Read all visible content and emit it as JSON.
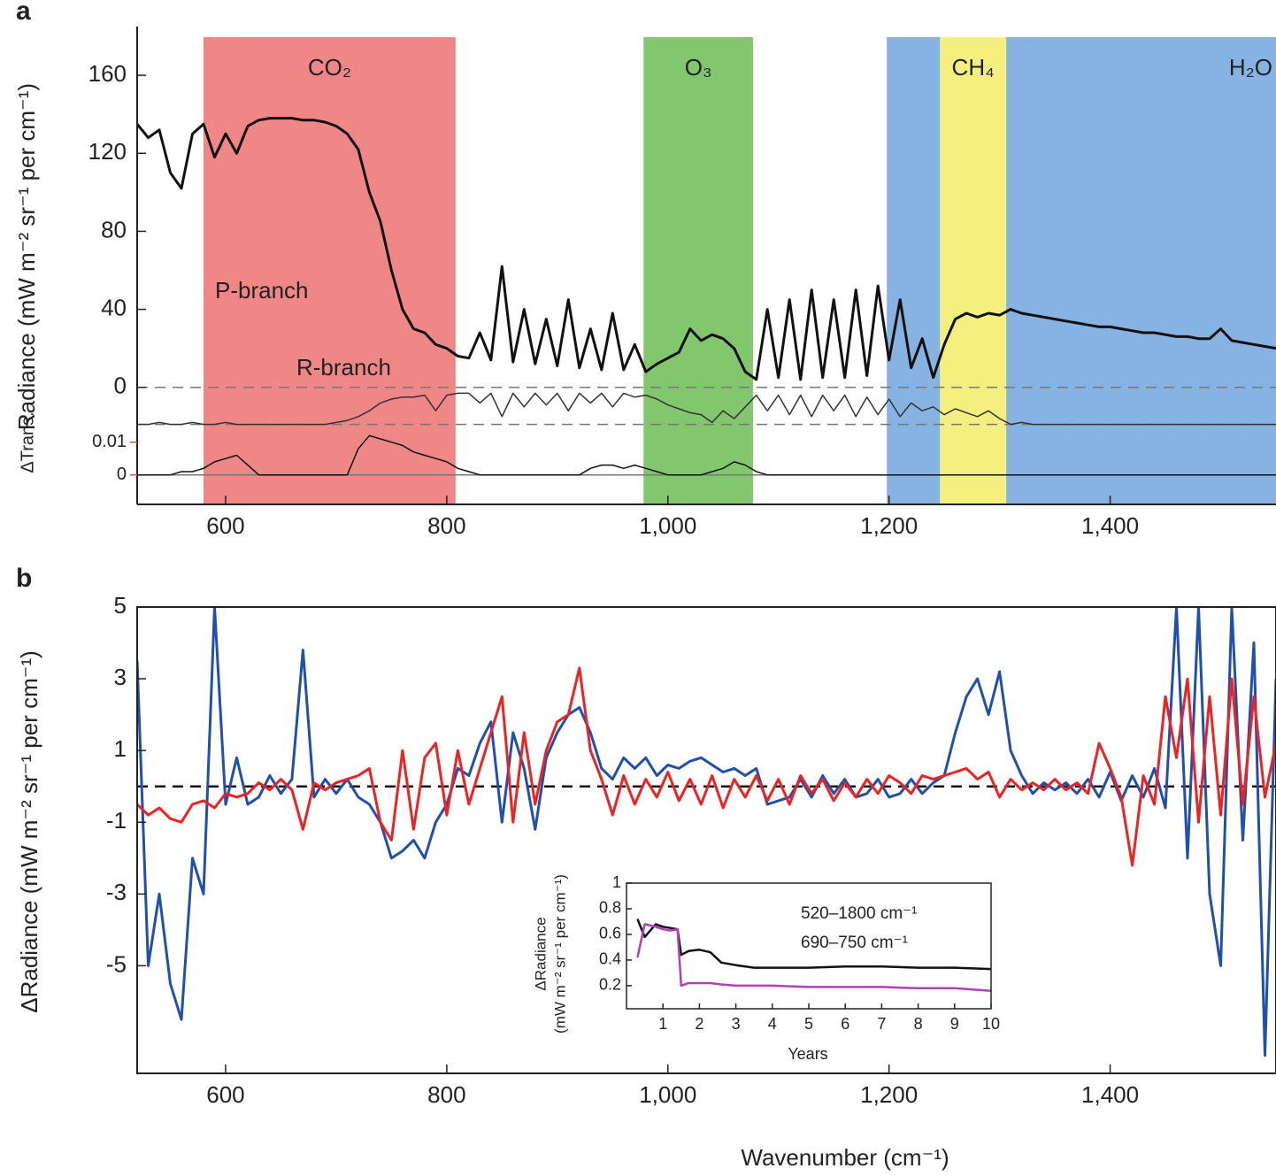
{
  "chart_data": [
    {
      "type": "line",
      "panel": "a",
      "ylabel": "Radiance (mW m⁻² sr⁻¹ per cm⁻¹)",
      "y2label": "ΔTrans.",
      "y2color": "#e0474c",
      "xlim": [
        520,
        1550
      ],
      "xticks": [
        600,
        800,
        {
          "value": 1000,
          "label": "1,000"
        },
        {
          "value": 1200,
          "label": "1,200"
        },
        {
          "value": 1400,
          "label": "1,400"
        }
      ],
      "ylim": [
        -60,
        185
      ],
      "yticks": [
        0,
        40,
        80,
        120,
        160
      ],
      "y2lim": [
        -0.009,
        0.137
      ],
      "y2ticks": [
        0,
        0.01
      ],
      "bands": [
        {
          "label": "CO₂",
          "range": [
            580,
            808
          ],
          "color": "#ef8787"
        },
        {
          "label": "O₃",
          "range": [
            978,
            1077
          ],
          "color": "#82c76d"
        },
        {
          "label": "H₂O",
          "range": [
            1198,
            1550
          ],
          "color": "#86b3e2"
        },
        {
          "label": "CH₄",
          "range": [
            1246,
            1306
          ],
          "color": "#f5ef80"
        }
      ],
      "annotations": [
        "P-branch",
        "R-branch"
      ],
      "hlines": [
        0,
        -19
      ],
      "y2hlines": [
        0
      ],
      "x": [
        520,
        530,
        540,
        550,
        560,
        570,
        580,
        590,
        600,
        610,
        620,
        630,
        640,
        650,
        660,
        670,
        680,
        690,
        700,
        710,
        720,
        730,
        740,
        750,
        760,
        770,
        780,
        790,
        800,
        810,
        820,
        830,
        840,
        850,
        860,
        870,
        880,
        890,
        900,
        910,
        920,
        930,
        940,
        950,
        960,
        970,
        980,
        990,
        1000,
        1010,
        1020,
        1030,
        1040,
        1050,
        1060,
        1070,
        1080,
        1090,
        1100,
        1110,
        1120,
        1130,
        1140,
        1150,
        1160,
        1170,
        1180,
        1190,
        1200,
        1210,
        1220,
        1230,
        1240,
        1250,
        1260,
        1270,
        1280,
        1290,
        1300,
        1310,
        1320,
        1330,
        1340,
        1350,
        1360,
        1370,
        1380,
        1390,
        1400,
        1410,
        1420,
        1430,
        1440,
        1450,
        1460,
        1470,
        1480,
        1490,
        1500,
        1510,
        1520,
        1530,
        1540,
        1550
      ],
      "series": [
        {
          "color": "#111111",
          "values": [
            135,
            128,
            132,
            110,
            102,
            130,
            135,
            118,
            130,
            120,
            134,
            137,
            138,
            138,
            138,
            137,
            137,
            136,
            134,
            130,
            122,
            100,
            85,
            60,
            40,
            30,
            28,
            22,
            20,
            16,
            15,
            28,
            14,
            62,
            13,
            40,
            12,
            35,
            11,
            45,
            10,
            30,
            9,
            38,
            9,
            22,
            8,
            12,
            15,
            18,
            30,
            24,
            27,
            25,
            20,
            8,
            4,
            40,
            5,
            45,
            4,
            50,
            5,
            45,
            5,
            50,
            6,
            52,
            14,
            45,
            10,
            25,
            5,
            22,
            35,
            38,
            36,
            38,
            37,
            40,
            38,
            37,
            36,
            35,
            34,
            33,
            32,
            31,
            31,
            30,
            29,
            28,
            28,
            27,
            26,
            26,
            25,
            25,
            30,
            24,
            23,
            22,
            21,
            20
          ]
        },
        {
          "color": "#333333",
          "values": [
            -19,
            -19,
            -18,
            -19,
            -19,
            -18,
            -19,
            -19,
            -18,
            -19,
            -19,
            -19,
            -19,
            -19,
            -19,
            -19,
            -19,
            -19,
            -18,
            -17,
            -15,
            -12,
            -8,
            -6,
            -5,
            -5,
            -4,
            -12,
            -4,
            -3,
            -3,
            -8,
            -3,
            -15,
            -3,
            -10,
            -3,
            -9,
            -3,
            -12,
            -3,
            -8,
            -3,
            -10,
            -3,
            -5,
            -4,
            -6,
            -9,
            -11,
            -13,
            -14,
            -18,
            -12,
            -16,
            -10,
            -4,
            -12,
            -4,
            -14,
            -4,
            -15,
            -4,
            -12,
            -4,
            -15,
            -5,
            -14,
            -6,
            -15,
            -8,
            -12,
            -10,
            -14,
            -11,
            -13,
            -15,
            -12,
            -16,
            -19,
            -18,
            -19,
            -19,
            -19,
            -19,
            -19,
            -19,
            -19,
            -19,
            -19,
            -19,
            -19,
            -19,
            -19,
            -19,
            -19,
            -19,
            -19,
            -19,
            -19,
            -19,
            -19,
            -19,
            -19
          ]
        },
        {
          "color": "#111111",
          "axis": "y2",
          "values": [
            0,
            0,
            0,
            0,
            0.001,
            0.001,
            0.002,
            0.004,
            0.005,
            0.006,
            0.003,
            0,
            0,
            0,
            0,
            0,
            0,
            0,
            0,
            0,
            0.008,
            0.012,
            0.011,
            0.01,
            0.009,
            0.007,
            0.006,
            0.005,
            0.004,
            0.002,
            0.001,
            0,
            0,
            0,
            0,
            0,
            0,
            0,
            0,
            0,
            0,
            0.002,
            0.003,
            0.003,
            0.002,
            0.003,
            0.002,
            0.001,
            0,
            0,
            0,
            0,
            0.001,
            0.002,
            0.004,
            0.003,
            0.001,
            0,
            0,
            0,
            0,
            0,
            0,
            0,
            0,
            0,
            0,
            0,
            0,
            0,
            0,
            0,
            0,
            0,
            0,
            0,
            0,
            0,
            0,
            0,
            0,
            0,
            0,
            0,
            0,
            0,
            0,
            0,
            0,
            0,
            0,
            0,
            0,
            0,
            0,
            0,
            0,
            0,
            0,
            0,
            0,
            0,
            0,
            0
          ]
        }
      ]
    },
    {
      "type": "line",
      "panel": "b",
      "ylabel": "ΔRadiance (mW m⁻² sr⁻¹ per cm⁻¹)",
      "xlabel": "Wavenumber (cm⁻¹)",
      "xlim": [
        520,
        1550
      ],
      "xticks": [
        600,
        800,
        {
          "value": 1000,
          "label": "1,000"
        },
        {
          "value": 1200,
          "label": "1,200"
        },
        {
          "value": 1400,
          "label": "1,400"
        }
      ],
      "ylim": [
        -8,
        5
      ],
      "yticks": [
        5,
        3,
        1,
        -1,
        -3,
        -5
      ],
      "hlines": [
        0
      ],
      "x": [
        520,
        530,
        540,
        550,
        560,
        570,
        580,
        590,
        600,
        610,
        620,
        630,
        640,
        650,
        660,
        670,
        680,
        690,
        700,
        710,
        720,
        730,
        740,
        750,
        760,
        770,
        780,
        790,
        800,
        810,
        820,
        830,
        840,
        850,
        860,
        870,
        880,
        890,
        900,
        910,
        920,
        930,
        940,
        950,
        960,
        970,
        980,
        990,
        1000,
        1010,
        1020,
        1030,
        1040,
        1050,
        1060,
        1070,
        1080,
        1090,
        1100,
        1110,
        1120,
        1130,
        1140,
        1150,
        1160,
        1170,
        1180,
        1190,
        1200,
        1210,
        1220,
        1230,
        1240,
        1250,
        1260,
        1270,
        1280,
        1290,
        1300,
        1310,
        1320,
        1330,
        1340,
        1350,
        1360,
        1370,
        1380,
        1390,
        1400,
        1410,
        1420,
        1430,
        1440,
        1450,
        1460,
        1470,
        1480,
        1490,
        1500,
        1510,
        1520,
        1530,
        1540,
        1550
      ],
      "series": [
        {
          "color": "#1f4fb0",
          "values": [
            3.5,
            -5,
            -3,
            -5.5,
            -6.5,
            -2,
            -3,
            5,
            -0.5,
            0.8,
            -0.5,
            -0.3,
            0.3,
            -0.2,
            0.2,
            3.8,
            -0.3,
            0.2,
            -0.2,
            0.2,
            -0.3,
            -0.5,
            -1,
            -2,
            -1.8,
            -1.5,
            -2,
            -1,
            -0.5,
            0.5,
            0.3,
            1.2,
            1.8,
            -1,
            1.5,
            0.5,
            -1.2,
            0.8,
            1.5,
            2,
            2.2,
            1.5,
            0.5,
            0.2,
            0.8,
            0.5,
            0.8,
            0.3,
            0.6,
            0.5,
            0.7,
            0.8,
            0.6,
            0.4,
            0.5,
            0.3,
            0.5,
            -0.5,
            -0.4,
            -0.3,
            0.2,
            -0.3,
            0.3,
            -0.2,
            0.2,
            -0.3,
            -0.2,
            0.2,
            -0.3,
            -0.2,
            0.2,
            -0.2,
            0.1,
            0.3,
            1.5,
            2.5,
            3,
            2,
            3.2,
            1,
            0.3,
            -0.2,
            0.1,
            -0.1,
            0.1,
            -0.2,
            0.2,
            -0.3,
            0.4,
            -0.4,
            0.3,
            -0.3,
            0.5,
            -0.6,
            5,
            -2,
            5,
            -3,
            -5,
            5,
            -1.5,
            4,
            -7.5,
            3
          ]
        },
        {
          "color": "#ee2222",
          "values": [
            -0.5,
            -0.8,
            -0.6,
            -0.9,
            -1,
            -0.5,
            -0.4,
            -0.6,
            -0.2,
            -0.3,
            -0.2,
            0.1,
            -0.1,
            0.2,
            -0.1,
            -1.2,
            0.1,
            -0.1,
            0.1,
            0.2,
            0.3,
            0.5,
            -1,
            -1.5,
            1,
            -1.2,
            0.8,
            1.2,
            -0.8,
            1,
            -0.5,
            0.5,
            1.5,
            2.5,
            -1,
            1.5,
            -0.5,
            1,
            1.8,
            2,
            3.3,
            1,
            0.2,
            -0.8,
            0.3,
            -0.5,
            0.2,
            -0.3,
            0.4,
            -0.4,
            0.2,
            -0.5,
            0.3,
            -0.6,
            0.2,
            -0.3,
            0.3,
            -0.4,
            0.2,
            -0.5,
            0.3,
            -0.2,
            0.2,
            -0.4,
            0.1,
            -0.3,
            0.2,
            -0.2,
            0.3,
            0.1,
            -0.2,
            0.3,
            0.2,
            0.3,
            0.4,
            0.5,
            0.2,
            0.4,
            -0.3,
            0.2,
            -0.1,
            0.1,
            -0.1,
            0.2,
            -0.1,
            0.1,
            -0.2,
            1.2,
            0.5,
            -0.3,
            -2.2,
            0.3,
            -0.5,
            2.5,
            0.8,
            3,
            -1,
            2.5,
            -0.8,
            3,
            -0.5,
            2.5,
            -0.3,
            1.2
          ]
        }
      ]
    },
    {
      "type": "line",
      "panel": "inset",
      "ylabel": [
        "ΔRadiance",
        "(mW m⁻² sr⁻¹ per cm⁻¹)"
      ],
      "xlabel": "Years",
      "xlim": [
        0,
        10
      ],
      "xticks": [
        1,
        2,
        3,
        4,
        5,
        6,
        7,
        8,
        9,
        10
      ],
      "ylim": [
        0.02,
        1
      ],
      "yticks": [
        0.2,
        0.4,
        0.6,
        0.8,
        1
      ],
      "x": [
        0.3,
        0.5,
        0.8,
        1,
        1.2,
        1.4,
        1.5,
        1.7,
        2,
        2.3,
        2.6,
        3,
        3.5,
        4,
        5,
        6,
        7,
        8,
        9,
        10
      ],
      "series": [
        {
          "name": "520–1800 cm⁻¹",
          "color": "#111111",
          "values": [
            0.72,
            0.58,
            0.68,
            0.66,
            0.65,
            0.64,
            0.44,
            0.47,
            0.48,
            0.46,
            0.38,
            0.36,
            0.34,
            0.34,
            0.34,
            0.35,
            0.35,
            0.34,
            0.34,
            0.33
          ]
        },
        {
          "name": "690–750 cm⁻¹",
          "color": "#b040b8",
          "values": [
            0.42,
            0.68,
            0.66,
            0.64,
            0.63,
            0.64,
            0.2,
            0.22,
            0.22,
            0.22,
            0.21,
            0.2,
            0.2,
            0.2,
            0.19,
            0.19,
            0.19,
            0.18,
            0.18,
            0.16
          ]
        }
      ]
    }
  ]
}
